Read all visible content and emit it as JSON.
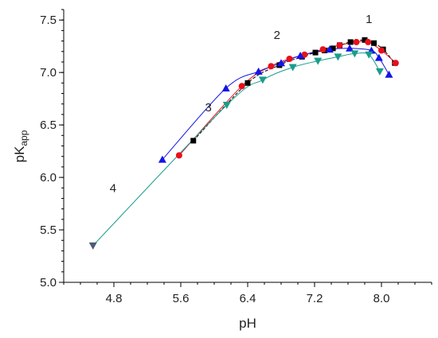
{
  "chart_data": {
    "type": "line",
    "xlabel": "pH",
    "ylabel_main": "pK",
    "ylabel_sub": "app",
    "xlim": [
      4.2,
      8.6
    ],
    "ylim": [
      5.0,
      7.6
    ],
    "x_ticks": [
      4.8,
      5.6,
      6.4,
      7.2,
      8.0
    ],
    "x_tick_labels": [
      "4.8",
      "5.6",
      "6.4",
      "7.2",
      "8.0"
    ],
    "x_minor_step": 0.2,
    "y_ticks": [
      5.0,
      5.5,
      6.0,
      6.5,
      7.0,
      7.5
    ],
    "y_tick_labels": [
      "5.0",
      "5.5",
      "6.0",
      "6.5",
      "7.0",
      "7.5"
    ],
    "y_minor_step": 0.1,
    "grid": false,
    "series": [
      {
        "name": "1",
        "color": "#000000",
        "marker": "square",
        "line_style": "dashed",
        "x": [
          5.75,
          6.4,
          6.78,
          7.05,
          7.21,
          7.32,
          7.42,
          7.5,
          7.63,
          7.8,
          7.91,
          8.02,
          8.16
        ],
        "y": [
          6.35,
          6.9,
          7.07,
          7.15,
          7.19,
          7.21,
          7.23,
          7.26,
          7.29,
          7.31,
          7.28,
          7.22,
          7.09
        ]
      },
      {
        "name": "2",
        "color": "#e8101a",
        "marker": "circle",
        "line_style": "solid",
        "x": [
          5.58,
          6.33,
          6.68,
          6.9,
          7.08,
          7.3,
          7.5,
          7.7,
          7.84,
          8.0,
          8.17
        ],
        "y": [
          6.21,
          6.87,
          7.06,
          7.13,
          7.17,
          7.22,
          7.26,
          7.29,
          7.29,
          7.21,
          7.09
        ]
      },
      {
        "name": "3",
        "color": "#1414e6",
        "marker": "triangle-up",
        "line_style": "solid",
        "x": [
          5.38,
          6.14,
          6.53,
          6.8,
          7.03,
          7.38,
          7.62,
          7.88,
          7.97,
          8.09
        ],
        "y": [
          6.17,
          6.85,
          7.01,
          7.09,
          7.16,
          7.22,
          7.23,
          7.21,
          7.14,
          6.98
        ]
      },
      {
        "name": "4",
        "color": "#1a9c8c",
        "marker": "triangle-down",
        "line_style": "solid",
        "x": [
          4.55,
          6.15,
          6.58,
          6.94,
          7.24,
          7.48,
          7.68,
          7.85,
          7.98
        ],
        "y": [
          5.35,
          6.69,
          6.93,
          7.05,
          7.11,
          7.15,
          7.18,
          7.17,
          7.01
        ]
      }
    ],
    "series_labels": [
      {
        "text": "1",
        "x": 7.85,
        "y": 7.47
      },
      {
        "text": "2",
        "x": 6.75,
        "y": 7.32
      },
      {
        "text": "3",
        "x": 5.93,
        "y": 6.63
      },
      {
        "text": "4",
        "x": 4.79,
        "y": 5.86
      }
    ]
  }
}
